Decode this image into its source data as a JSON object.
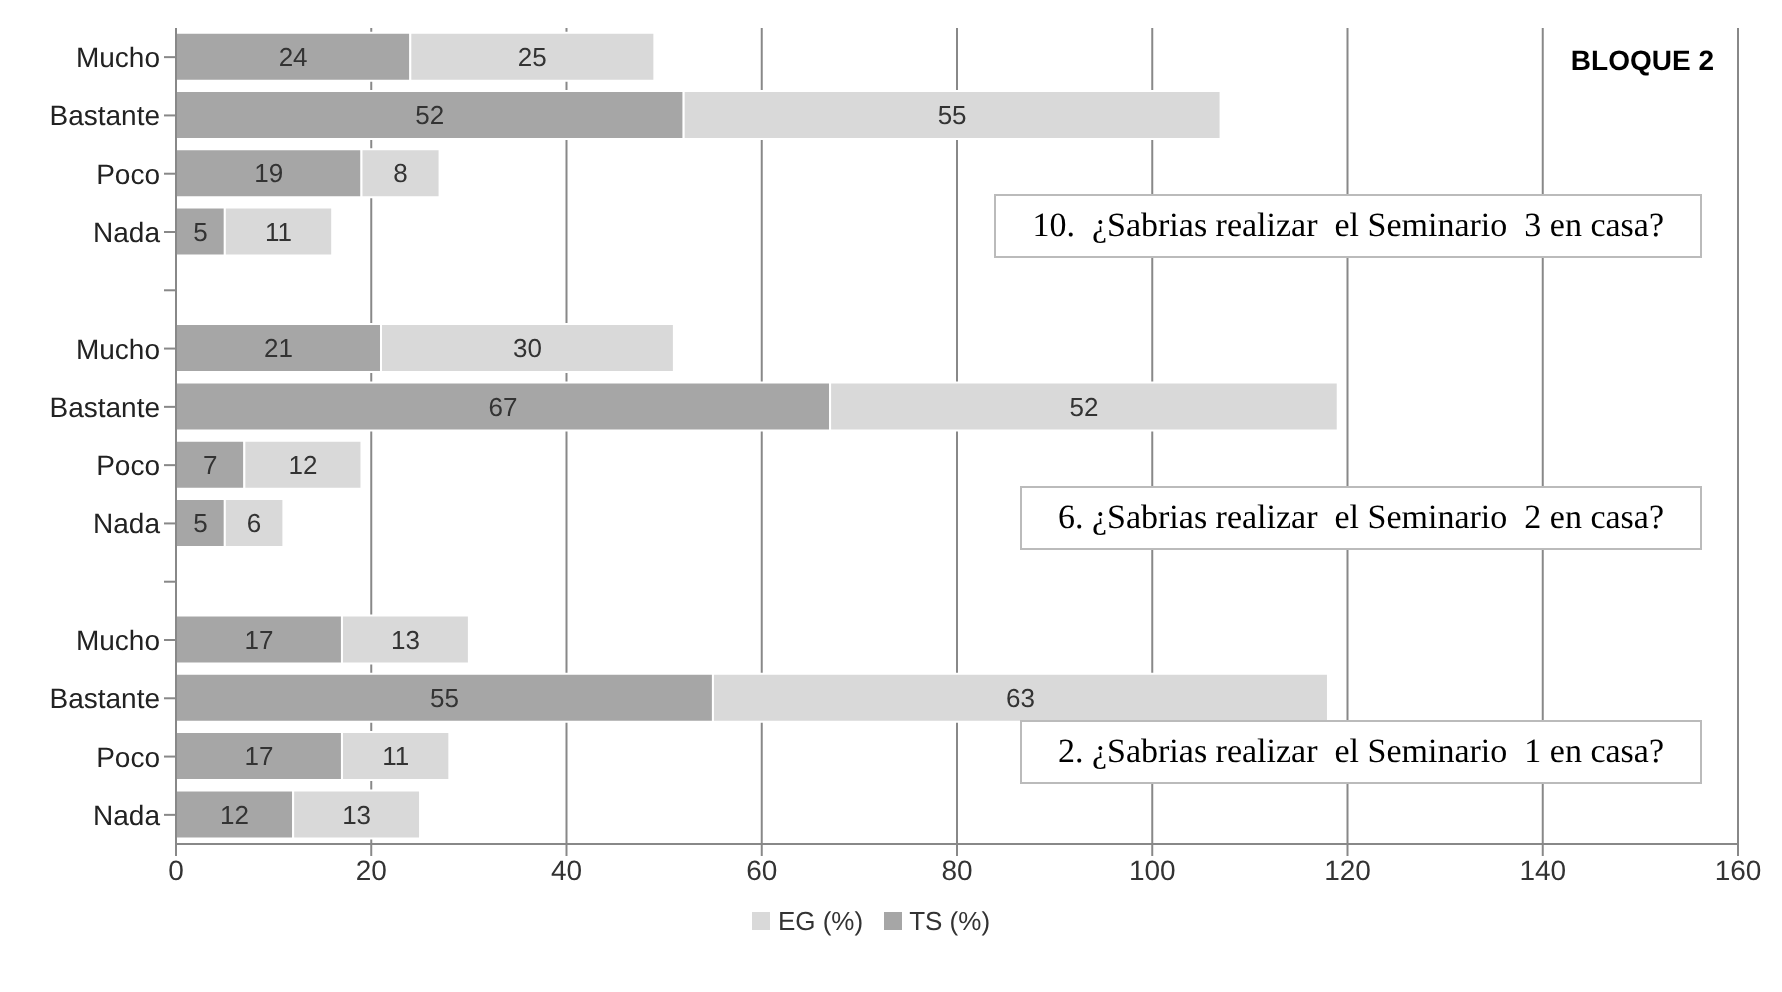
{
  "chart_data": {
    "type": "bar",
    "orientation": "horizontal",
    "stacked": true,
    "title": "BLOQUE 2",
    "categories": [
      "Mucho",
      "Bastante",
      "Poco",
      "Nada",
      null,
      "Mucho",
      "Bastante",
      "Poco",
      "Nada",
      null,
      "Mucho",
      "Bastante",
      "Poco",
      "Nada"
    ],
    "series": [
      {
        "name": "TS (%)",
        "color": "#a6a6a6",
        "values": [
          24,
          52,
          19,
          5,
          null,
          21,
          67,
          7,
          5,
          null,
          17,
          55,
          17,
          12
        ]
      },
      {
        "name": "EG (%)",
        "color": "#d9d9d9",
        "values": [
          25,
          55,
          8,
          11,
          null,
          30,
          52,
          12,
          6,
          null,
          13,
          63,
          11,
          13
        ]
      }
    ],
    "xlim": [
      0,
      160
    ],
    "xticks": [
      0,
      20,
      40,
      60,
      80,
      100,
      120,
      140,
      160
    ],
    "grid": "x",
    "legend": "bottom",
    "data_labels": true,
    "annotations": [
      "10.  ¿Sabrias realizar  el Seminario  3 en casa?",
      "6. ¿Sabrias realizar  el Seminario  2 en casa?",
      "2. ¿Sabrias realizar  el Seminario  1 en casa?"
    ]
  }
}
